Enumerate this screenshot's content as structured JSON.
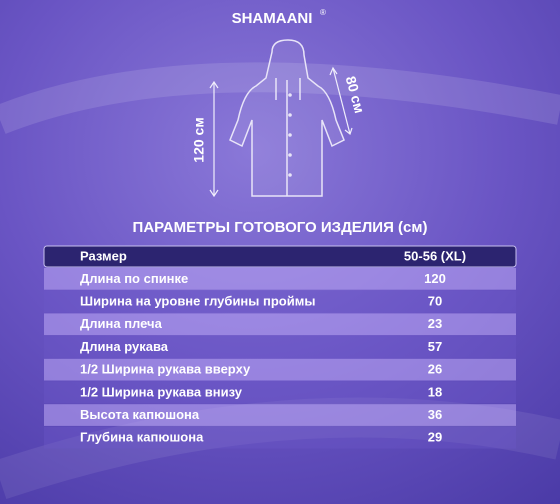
{
  "brand": "SHAMAANI",
  "brand_mark": "®",
  "dimensions": {
    "length": "120 см",
    "sleeve": "80 см"
  },
  "table": {
    "title": "ПАРАМЕТРЫ ГОТОВОГО ИЗДЕЛИЯ (см)",
    "header": [
      "Размер",
      "50-56 (XL)"
    ],
    "rows": [
      [
        "Длина по спинке",
        120
      ],
      [
        "Ширина на уровне глубины проймы",
        70
      ],
      [
        "Длина плеча",
        23
      ],
      [
        "Длина рукава",
        57
      ],
      [
        "1/2 Ширина рукава вверху",
        26
      ],
      [
        "1/2 Ширина рукава внизу",
        18
      ],
      [
        "Высота капюшона",
        36
      ],
      [
        "Глубина капюшона",
        29
      ]
    ]
  }
}
